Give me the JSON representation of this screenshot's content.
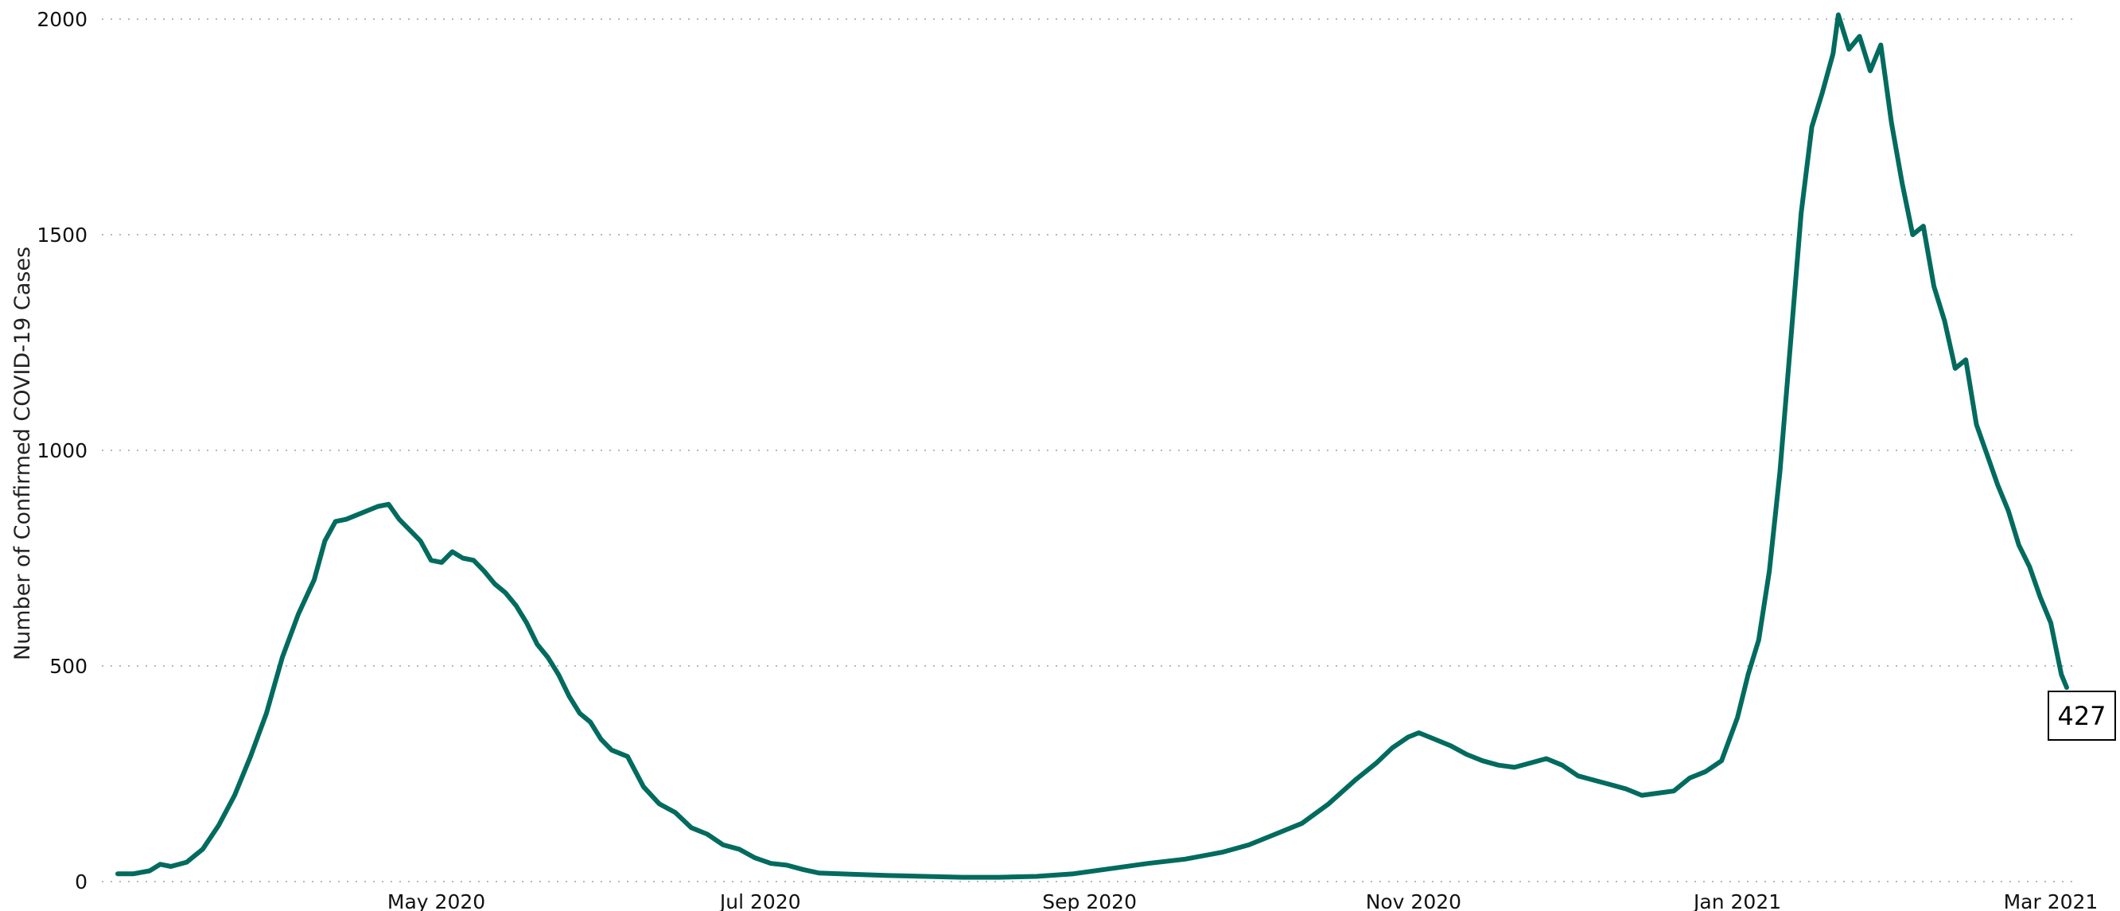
{
  "chart_data": {
    "type": "line",
    "title": "",
    "xlabel": "",
    "ylabel": "Number of Confirmed COVID-19 Cases",
    "x_range": [
      "2020-03-02",
      "2021-03-04"
    ],
    "ylim": [
      0,
      2000
    ],
    "y_ticks": [
      0,
      500,
      1000,
      1500,
      2000
    ],
    "x_ticks": [
      {
        "date": "2020-05-01",
        "label": "May 2020"
      },
      {
        "date": "2020-07-01",
        "label": "Jul 2020"
      },
      {
        "date": "2020-09-01",
        "label": "Sep 2020"
      },
      {
        "date": "2020-11-01",
        "label": "Nov 2020"
      },
      {
        "date": "2021-01-01",
        "label": "Jan 2021"
      },
      {
        "date": "2021-03-01",
        "label": "Mar 2021"
      }
    ],
    "grid": "horizontal dotted",
    "legend": "none",
    "series": [
      {
        "color": "#006b5e",
        "points": [
          [
            "2020-03-02",
            18
          ],
          [
            "2020-03-05",
            18
          ],
          [
            "2020-03-08",
            25
          ],
          [
            "2020-03-10",
            40
          ],
          [
            "2020-03-12",
            35
          ],
          [
            "2020-03-15",
            45
          ],
          [
            "2020-03-18",
            75
          ],
          [
            "2020-03-21",
            130
          ],
          [
            "2020-03-24",
            200
          ],
          [
            "2020-03-27",
            290
          ],
          [
            "2020-03-30",
            390
          ],
          [
            "2020-04-02",
            520
          ],
          [
            "2020-04-05",
            620
          ],
          [
            "2020-04-08",
            700
          ],
          [
            "2020-04-10",
            790
          ],
          [
            "2020-04-12",
            835
          ],
          [
            "2020-04-14",
            840
          ],
          [
            "2020-04-16",
            850
          ],
          [
            "2020-04-18",
            860
          ],
          [
            "2020-04-20",
            870
          ],
          [
            "2020-04-22",
            875
          ],
          [
            "2020-04-24",
            840
          ],
          [
            "2020-04-26",
            815
          ],
          [
            "2020-04-28",
            790
          ],
          [
            "2020-04-30",
            745
          ],
          [
            "2020-05-02",
            740
          ],
          [
            "2020-05-04",
            765
          ],
          [
            "2020-05-06",
            750
          ],
          [
            "2020-05-08",
            745
          ],
          [
            "2020-05-10",
            720
          ],
          [
            "2020-05-12",
            690
          ],
          [
            "2020-05-14",
            670
          ],
          [
            "2020-05-16",
            640
          ],
          [
            "2020-05-18",
            600
          ],
          [
            "2020-05-20",
            550
          ],
          [
            "2020-05-22",
            520
          ],
          [
            "2020-05-24",
            480
          ],
          [
            "2020-05-26",
            430
          ],
          [
            "2020-05-28",
            390
          ],
          [
            "2020-05-30",
            370
          ],
          [
            "2020-06-01",
            330
          ],
          [
            "2020-06-03",
            305
          ],
          [
            "2020-06-06",
            290
          ],
          [
            "2020-06-09",
            220
          ],
          [
            "2020-06-12",
            180
          ],
          [
            "2020-06-15",
            160
          ],
          [
            "2020-06-18",
            125
          ],
          [
            "2020-06-21",
            110
          ],
          [
            "2020-06-24",
            85
          ],
          [
            "2020-06-27",
            75
          ],
          [
            "2020-06-30",
            55
          ],
          [
            "2020-07-03",
            42
          ],
          [
            "2020-07-06",
            38
          ],
          [
            "2020-07-09",
            28
          ],
          [
            "2020-07-12",
            20
          ],
          [
            "2020-07-18",
            17
          ],
          [
            "2020-07-25",
            14
          ],
          [
            "2020-08-01",
            12
          ],
          [
            "2020-08-08",
            10
          ],
          [
            "2020-08-15",
            10
          ],
          [
            "2020-08-22",
            12
          ],
          [
            "2020-08-29",
            18
          ],
          [
            "2020-09-05",
            30
          ],
          [
            "2020-09-12",
            42
          ],
          [
            "2020-09-19",
            52
          ],
          [
            "2020-09-26",
            68
          ],
          [
            "2020-10-01",
            85
          ],
          [
            "2020-10-06",
            110
          ],
          [
            "2020-10-11",
            135
          ],
          [
            "2020-10-16",
            180
          ],
          [
            "2020-10-21",
            235
          ],
          [
            "2020-10-25",
            275
          ],
          [
            "2020-10-28",
            310
          ],
          [
            "2020-10-31",
            335
          ],
          [
            "2020-11-02",
            345
          ],
          [
            "2020-11-05",
            330
          ],
          [
            "2020-11-08",
            315
          ],
          [
            "2020-11-11",
            295
          ],
          [
            "2020-11-14",
            280
          ],
          [
            "2020-11-17",
            270
          ],
          [
            "2020-11-20",
            265
          ],
          [
            "2020-11-23",
            275
          ],
          [
            "2020-11-26",
            285
          ],
          [
            "2020-11-29",
            270
          ],
          [
            "2020-12-02",
            245
          ],
          [
            "2020-12-05",
            235
          ],
          [
            "2020-12-08",
            225
          ],
          [
            "2020-12-11",
            215
          ],
          [
            "2020-12-14",
            200
          ],
          [
            "2020-12-17",
            205
          ],
          [
            "2020-12-20",
            210
          ],
          [
            "2020-12-23",
            240
          ],
          [
            "2020-12-26",
            255
          ],
          [
            "2020-12-29",
            280
          ],
          [
            "2021-01-01",
            380
          ],
          [
            "2021-01-03",
            480
          ],
          [
            "2021-01-05",
            560
          ],
          [
            "2021-01-07",
            720
          ],
          [
            "2021-01-09",
            950
          ],
          [
            "2021-01-11",
            1250
          ],
          [
            "2021-01-13",
            1550
          ],
          [
            "2021-01-15",
            1750
          ],
          [
            "2021-01-17",
            1830
          ],
          [
            "2021-01-19",
            1920
          ],
          [
            "2021-01-20",
            2010
          ],
          [
            "2021-01-22",
            1930
          ],
          [
            "2021-01-24",
            1960
          ],
          [
            "2021-01-26",
            1880
          ],
          [
            "2021-01-28",
            1940
          ],
          [
            "2021-01-30",
            1760
          ],
          [
            "2021-02-01",
            1620
          ],
          [
            "2021-02-03",
            1500
          ],
          [
            "2021-02-05",
            1520
          ],
          [
            "2021-02-07",
            1380
          ],
          [
            "2021-02-09",
            1300
          ],
          [
            "2021-02-11",
            1190
          ],
          [
            "2021-02-13",
            1210
          ],
          [
            "2021-02-15",
            1060
          ],
          [
            "2021-02-17",
            990
          ],
          [
            "2021-02-19",
            920
          ],
          [
            "2021-02-21",
            860
          ],
          [
            "2021-02-23",
            780
          ],
          [
            "2021-02-25",
            730
          ],
          [
            "2021-02-27",
            660
          ],
          [
            "2021-03-01",
            600
          ],
          [
            "2021-03-02",
            540
          ],
          [
            "2021-03-03",
            480
          ],
          [
            "2021-03-04",
            450
          ]
        ]
      }
    ],
    "annotation": {
      "label": "427"
    }
  }
}
